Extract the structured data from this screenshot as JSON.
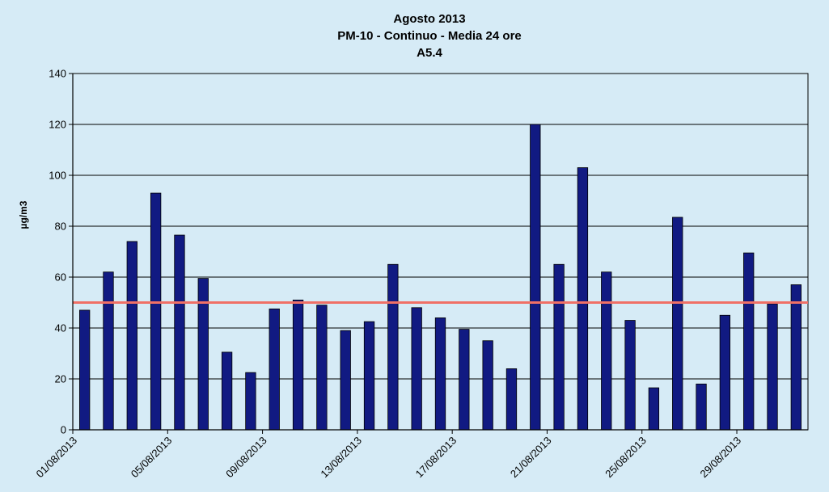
{
  "chart_data": {
    "type": "bar",
    "title": [
      "Agosto 2013",
      "PM-10 - Continuo -  Media 24 ore",
      "A5.4"
    ],
    "xlabel": "",
    "ylabel": "µg/m3",
    "ylim": [
      0,
      140
    ],
    "yticks": [
      0,
      20,
      40,
      60,
      80,
      100,
      120,
      140
    ],
    "grid": true,
    "categories": [
      "01/08/2013",
      "02/08/2013",
      "03/08/2013",
      "04/08/2013",
      "05/08/2013",
      "06/08/2013",
      "07/08/2013",
      "08/08/2013",
      "09/08/2013",
      "10/08/2013",
      "11/08/2013",
      "12/08/2013",
      "13/08/2013",
      "14/08/2013",
      "15/08/2013",
      "16/08/2013",
      "17/08/2013",
      "18/08/2013",
      "19/08/2013",
      "20/08/2013",
      "21/08/2013",
      "22/08/2013",
      "23/08/2013",
      "24/08/2013",
      "25/08/2013",
      "26/08/2013",
      "27/08/2013",
      "28/08/2013",
      "29/08/2013",
      "30/08/2013",
      "31/08/2013"
    ],
    "tick_labels": [
      "01/08/2013",
      "05/08/2013",
      "09/08/2013",
      "13/08/2013",
      "17/08/2013",
      "21/08/2013",
      "25/08/2013",
      "29/08/2013"
    ],
    "values": [
      47,
      62,
      74,
      93,
      76.5,
      59.5,
      30.5,
      22.5,
      47.5,
      51,
      49,
      39,
      42.5,
      65,
      48,
      44,
      39.5,
      35,
      24,
      120,
      65,
      103,
      62,
      43,
      16.5,
      83.5,
      18,
      45,
      69.5,
      49.5,
      57
    ],
    "threshold": 50,
    "colors": {
      "bar": "#111a82",
      "threshold": "#f07066",
      "grid": "#000000",
      "background": "#d6ebf6"
    }
  }
}
